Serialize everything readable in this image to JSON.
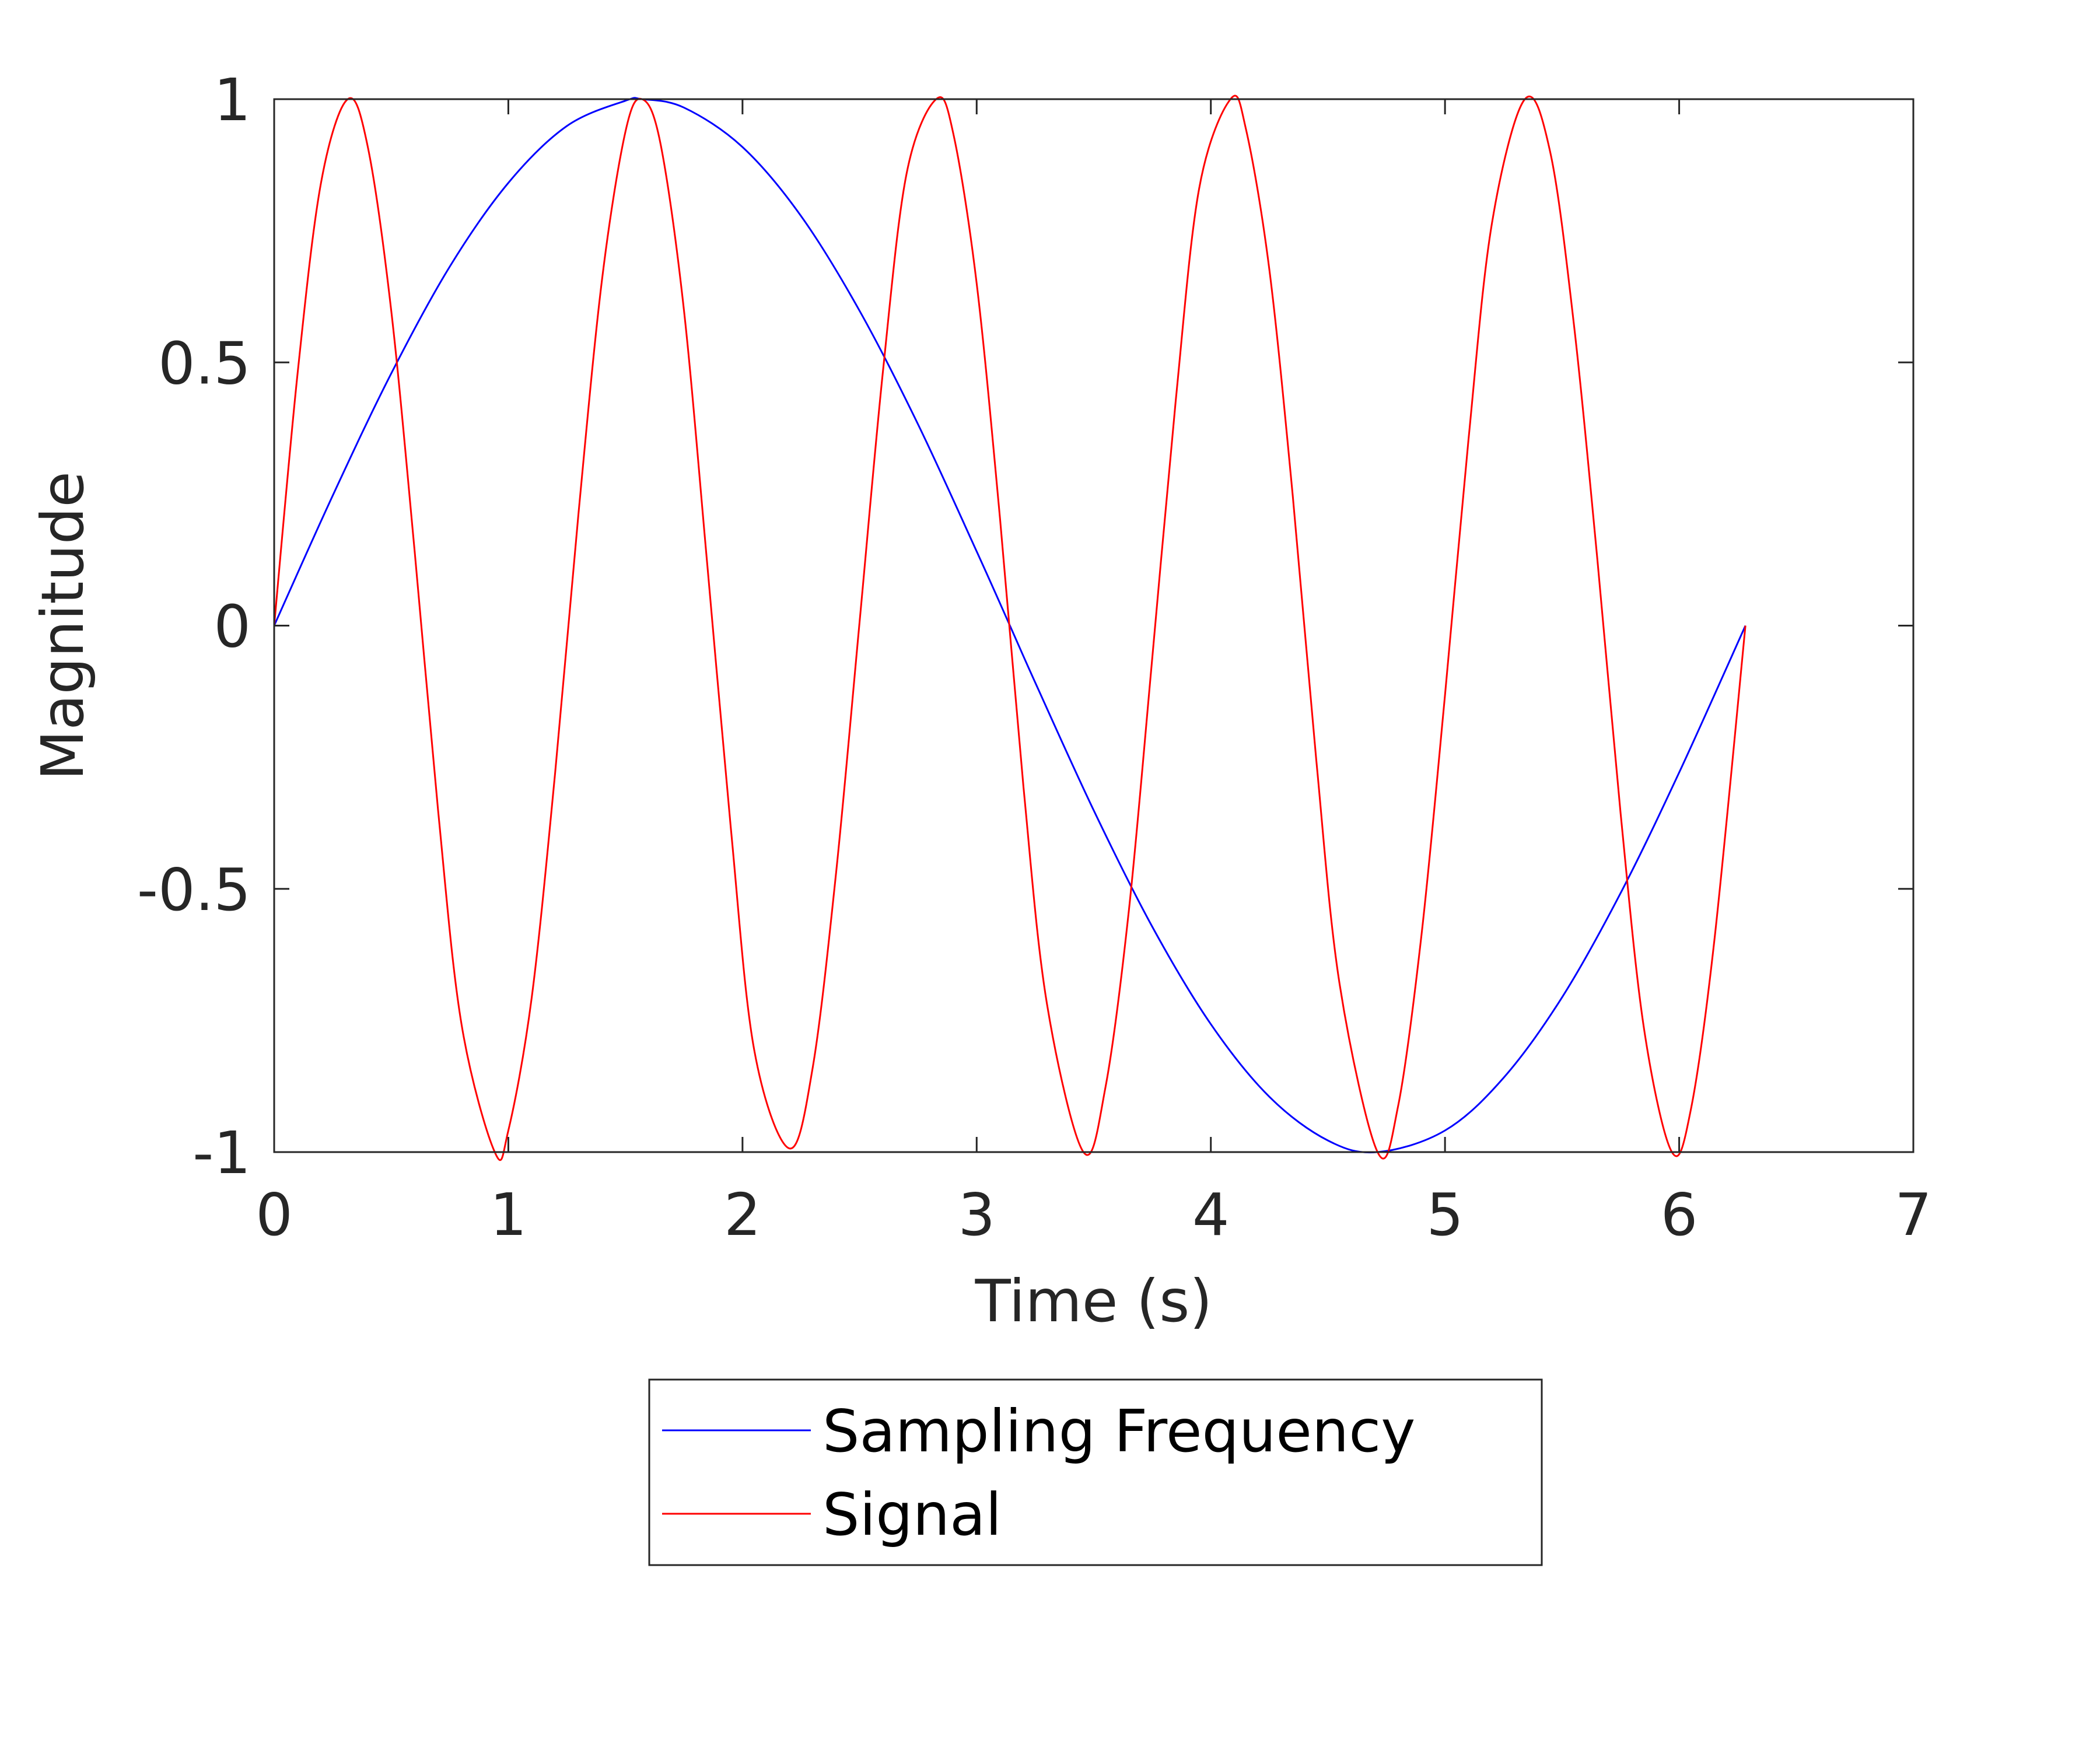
{
  "chart_data": {
    "type": "line",
    "title": "",
    "xlabel": "Time (s)",
    "ylabel": "Magnitude",
    "xlim": [
      0,
      7
    ],
    "ylim": [
      -1,
      1
    ],
    "xticks": [
      0,
      1,
      2,
      3,
      4,
      5,
      6,
      7
    ],
    "yticks": [
      -1,
      -0.5,
      0,
      0.5,
      1
    ],
    "xtick_labels": [
      "0",
      "1",
      "2",
      "3",
      "4",
      "5",
      "6",
      "7"
    ],
    "ytick_labels": [
      "-1",
      "-0.5",
      "0",
      "0.5",
      "1"
    ],
    "grid": false,
    "legend_position": "bottom-outside",
    "series": [
      {
        "name": "Sampling Frequency",
        "color": "#0000ff",
        "x": [
          0,
          0.25,
          0.5,
          0.75,
          1.0,
          1.25,
          1.5,
          1.571,
          1.75,
          2.0,
          2.25,
          2.5,
          2.75,
          3.0,
          3.142,
          3.25,
          3.5,
          3.75,
          4.0,
          4.25,
          4.5,
          4.712,
          5.0,
          5.25,
          5.5,
          5.75,
          6.0,
          6.283
        ],
        "y": [
          0,
          0.247,
          0.479,
          0.682,
          0.841,
          0.949,
          0.997,
          1.0,
          0.984,
          0.909,
          0.778,
          0.598,
          0.382,
          0.141,
          0.0,
          -0.108,
          -0.351,
          -0.572,
          -0.757,
          -0.895,
          -0.978,
          -1.0,
          -0.959,
          -0.859,
          -0.706,
          -0.508,
          -0.279,
          0.0
        ]
      },
      {
        "name": "Signal",
        "color": "#ff0000",
        "x": [
          0,
          0.1,
          0.2,
          0.314,
          0.4,
          0.5,
          0.6,
          0.7,
          0.8,
          0.942,
          1.0,
          1.1,
          1.2,
          1.3,
          1.4,
          1.5,
          1.571,
          1.65,
          1.75,
          1.85,
          1.95,
          2.05,
          2.2,
          2.3,
          2.4,
          2.5,
          2.6,
          2.7,
          2.827,
          2.9,
          3.0,
          3.1,
          3.2,
          3.3,
          3.456,
          3.55,
          3.65,
          3.75,
          3.85,
          3.95,
          4.084,
          4.15,
          4.25,
          4.35,
          4.45,
          4.55,
          4.712,
          4.8,
          4.9,
          5.0,
          5.1,
          5.2,
          5.341,
          5.45,
          5.55,
          5.65,
          5.75,
          5.85,
          5.969,
          6.05,
          6.15,
          6.283
        ],
        "y": [
          0,
          0.479,
          0.841,
          1.0,
          0.909,
          0.598,
          0.141,
          -0.351,
          -0.757,
          -1.0,
          -0.959,
          -0.706,
          -0.279,
          0.215,
          0.657,
          0.938,
          1.0,
          0.915,
          0.599,
          0.114,
          -0.384,
          -0.806,
          -0.993,
          -0.839,
          -0.468,
          0.007,
          0.484,
          0.857,
          1.0,
          0.935,
          0.65,
          0.202,
          -0.307,
          -0.718,
          -1.0,
          -0.877,
          -0.541,
          -0.061,
          0.427,
          0.83,
          1.0,
          0.943,
          0.676,
          0.246,
          -0.254,
          -0.681,
          -1.0,
          -0.912,
          -0.586,
          -0.132,
          0.352,
          0.763,
          1.0,
          0.898,
          0.574,
          0.129,
          -0.357,
          -0.766,
          -1.0,
          -0.919,
          -0.599,
          0.0
        ]
      }
    ]
  }
}
